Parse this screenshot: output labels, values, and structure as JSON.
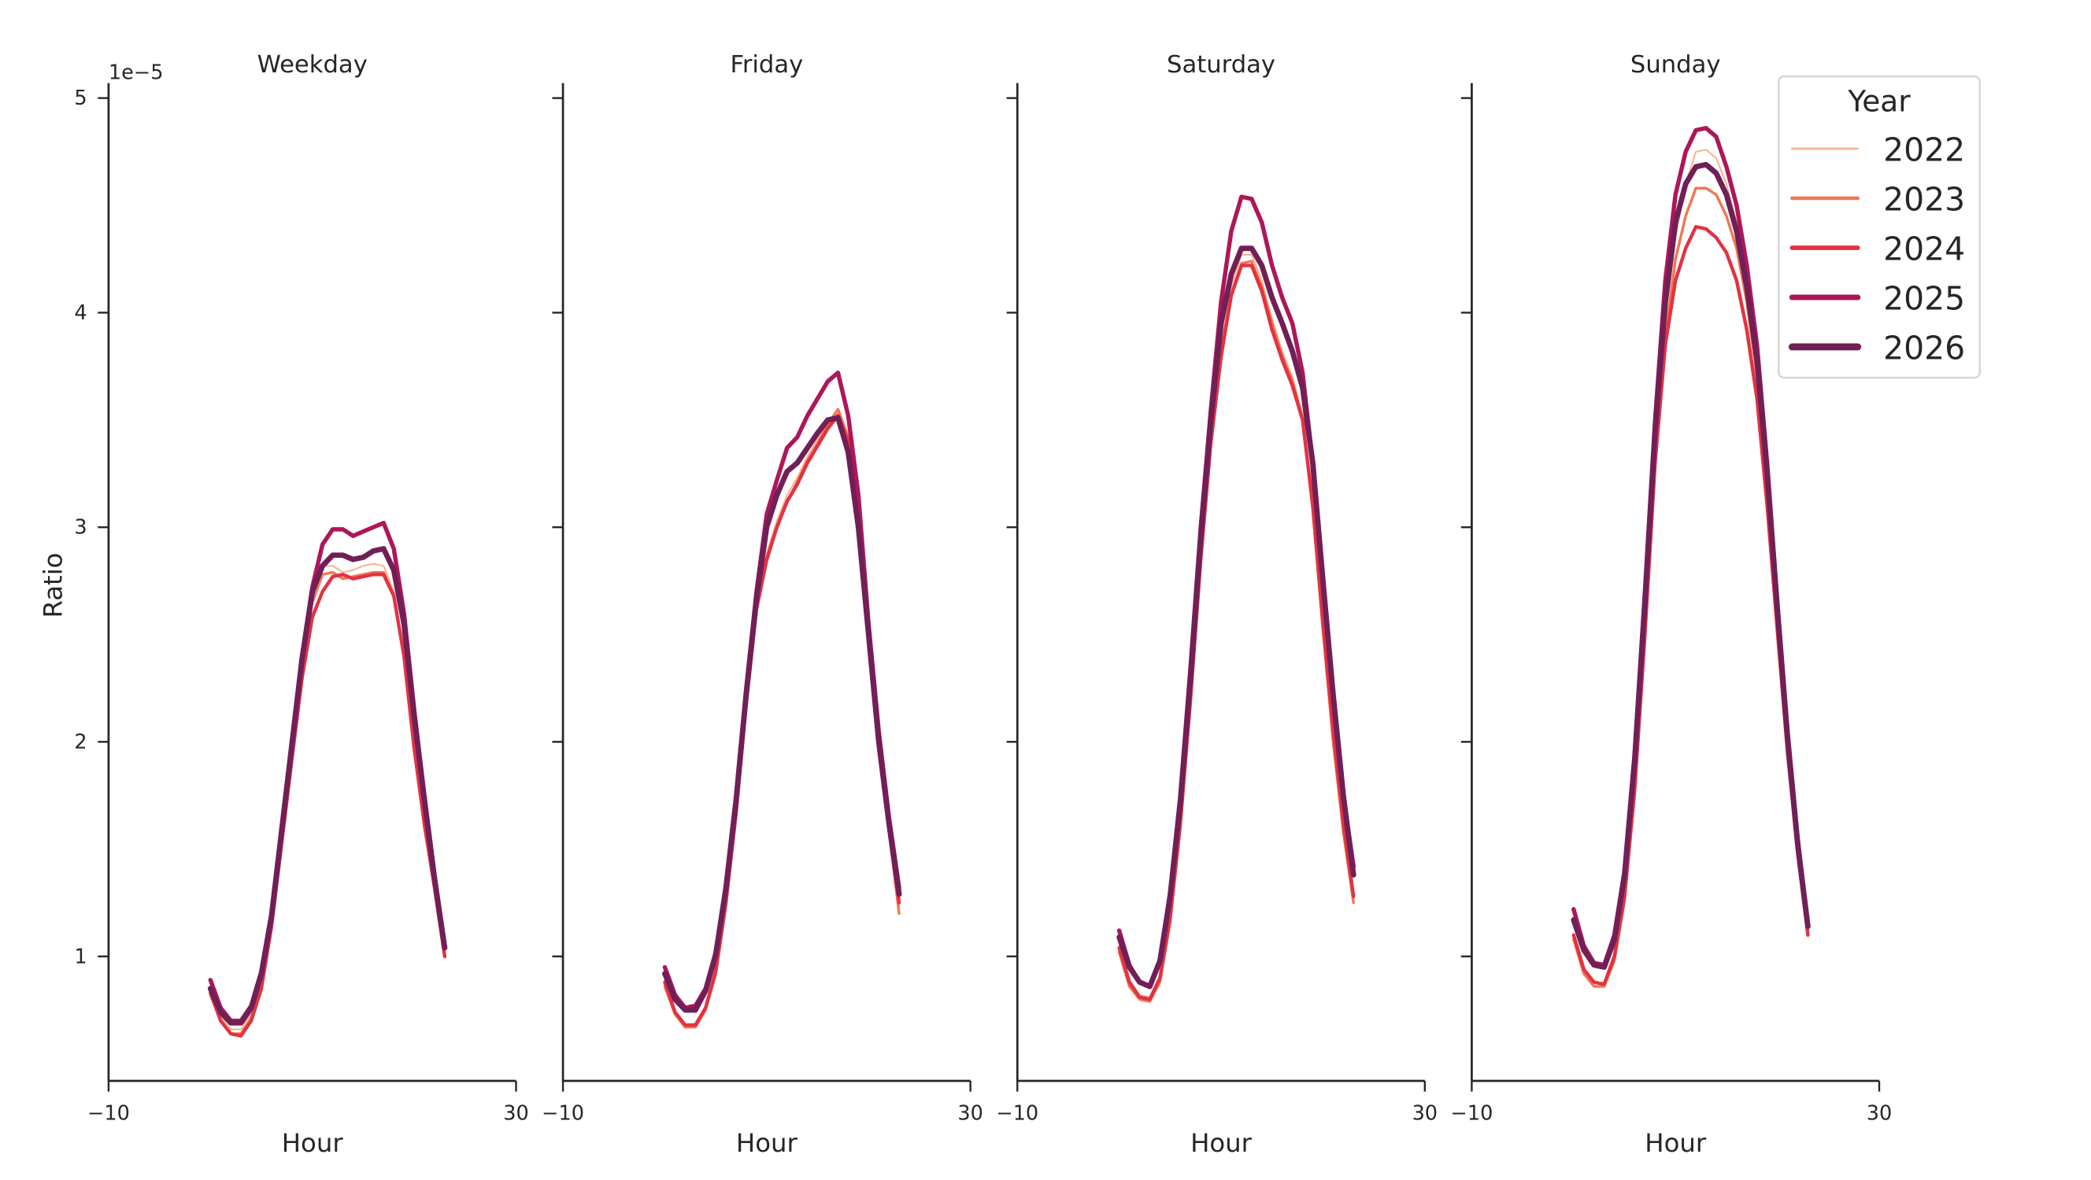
{
  "chart_data": {
    "type": "line",
    "panels": [
      {
        "title": "Weekday",
        "series": [
          {
            "name": "2022",
            "values": [
              0.84,
              0.72,
              0.66,
              0.66,
              0.73,
              0.88,
              1.17,
              1.58,
              1.98,
              2.38,
              2.68,
              2.82,
              2.82,
              2.79,
              2.8,
              2.82,
              2.83,
              2.82,
              2.7,
              2.42,
              1.98,
              1.62,
              1.33,
              1.02
            ]
          },
          {
            "name": "2023",
            "values": [
              0.82,
              0.7,
              0.64,
              0.64,
              0.71,
              0.86,
              1.15,
              1.55,
              1.95,
              2.35,
              2.65,
              2.78,
              2.79,
              2.76,
              2.77,
              2.78,
              2.79,
              2.79,
              2.68,
              2.4,
              1.96,
              1.6,
              1.32,
              1.01
            ]
          },
          {
            "name": "2024",
            "values": [
              0.83,
              0.7,
              0.64,
              0.63,
              0.7,
              0.85,
              1.14,
              1.53,
              1.92,
              2.3,
              2.58,
              2.7,
              2.77,
              2.78,
              2.76,
              2.77,
              2.78,
              2.78,
              2.68,
              2.4,
              1.97,
              1.62,
              1.32,
              1.0
            ]
          },
          {
            "name": "2025",
            "values": [
              0.89,
              0.76,
              0.7,
              0.7,
              0.77,
              0.93,
              1.2,
              1.6,
              2.0,
              2.4,
              2.72,
              2.92,
              2.99,
              2.99,
              2.96,
              2.98,
              3.0,
              3.02,
              2.9,
              2.6,
              2.15,
              1.75,
              1.38,
              1.05
            ]
          },
          {
            "name": "2026",
            "values": [
              0.85,
              0.74,
              0.69,
              0.69,
              0.76,
              0.92,
              1.19,
              1.59,
              1.99,
              2.39,
              2.7,
              2.82,
              2.87,
              2.87,
              2.85,
              2.86,
              2.89,
              2.9,
              2.8,
              2.55,
              2.12,
              1.73,
              1.36,
              1.04
            ]
          }
        ]
      },
      {
        "title": "Friday",
        "series": [
          {
            "name": "2022",
            "values": [
              0.87,
              0.74,
              0.68,
              0.68,
              0.76,
              0.93,
              1.25,
              1.68,
              2.19,
              2.63,
              2.88,
              3.03,
              3.15,
              3.23,
              3.33,
              3.41,
              3.48,
              3.53,
              3.4,
              3.04,
              2.5,
              2.02,
              1.6,
              1.24
            ]
          },
          {
            "name": "2023",
            "values": [
              0.86,
              0.73,
              0.67,
              0.67,
              0.75,
              0.92,
              1.24,
              1.66,
              2.17,
              2.61,
              2.84,
              3.0,
              3.12,
              3.21,
              3.31,
              3.39,
              3.48,
              3.55,
              3.42,
              3.05,
              2.48,
              2.0,
              1.58,
              1.2
            ]
          },
          {
            "name": "2024",
            "values": [
              0.88,
              0.74,
              0.68,
              0.68,
              0.76,
              0.93,
              1.25,
              1.67,
              2.18,
              2.62,
              2.85,
              3.0,
              3.12,
              3.2,
              3.3,
              3.38,
              3.46,
              3.52,
              3.4,
              3.05,
              2.5,
              2.02,
              1.6,
              1.25
            ]
          },
          {
            "name": "2025",
            "values": [
              0.95,
              0.82,
              0.76,
              0.77,
              0.85,
              1.02,
              1.33,
              1.75,
              2.25,
              2.7,
              3.06,
              3.22,
              3.37,
              3.42,
              3.52,
              3.6,
              3.68,
              3.72,
              3.52,
              3.15,
              2.55,
              2.05,
              1.65,
              1.32
            ]
          },
          {
            "name": "2026",
            "values": [
              0.92,
              0.8,
              0.75,
              0.75,
              0.84,
              1.01,
              1.32,
              1.73,
              2.23,
              2.67,
              3.0,
              3.15,
              3.26,
              3.3,
              3.37,
              3.44,
              3.5,
              3.51,
              3.35,
              3.0,
              2.5,
              2.0,
              1.62,
              1.29
            ]
          }
        ]
      },
      {
        "title": "Saturday",
        "series": [
          {
            "name": "2022",
            "values": [
              1.05,
              0.89,
              0.82,
              0.81,
              0.91,
              1.19,
              1.64,
              2.23,
              2.88,
              3.44,
              3.85,
              4.12,
              4.27,
              4.27,
              4.15,
              3.97,
              3.82,
              3.7,
              3.53,
              3.14,
              2.58,
              2.06,
              1.62,
              1.3
            ]
          },
          {
            "name": "2023",
            "values": [
              1.02,
              0.86,
              0.8,
              0.79,
              0.88,
              1.16,
              1.6,
              2.18,
              2.83,
              3.38,
              3.78,
              4.08,
              4.23,
              4.24,
              4.12,
              3.95,
              3.8,
              3.68,
              3.5,
              3.08,
              2.52,
              2.0,
              1.58,
              1.25
            ]
          },
          {
            "name": "2024",
            "values": [
              1.04,
              0.88,
              0.81,
              0.8,
              0.9,
              1.18,
              1.62,
              2.2,
              2.85,
              3.4,
              3.8,
              4.08,
              4.22,
              4.22,
              4.1,
              3.92,
              3.78,
              3.66,
              3.5,
              3.1,
              2.55,
              2.05,
              1.62,
              1.28
            ]
          },
          {
            "name": "2025",
            "values": [
              1.12,
              0.96,
              0.88,
              0.86,
              0.98,
              1.3,
              1.75,
              2.35,
              3.0,
              3.55,
              4.05,
              4.38,
              4.54,
              4.53,
              4.42,
              4.22,
              4.07,
              3.95,
              3.72,
              3.3,
              2.75,
              2.2,
              1.75,
              1.42
            ]
          },
          {
            "name": "2026",
            "values": [
              1.09,
              0.95,
              0.88,
              0.86,
              0.98,
              1.28,
              1.72,
              2.3,
              2.95,
              3.5,
              3.95,
              4.18,
              4.3,
              4.3,
              4.22,
              4.07,
              3.95,
              3.82,
              3.65,
              3.3,
              2.75,
              2.22,
              1.75,
              1.38
            ]
          }
        ]
      },
      {
        "title": "Sunday",
        "series": [
          {
            "name": "2022",
            "values": [
              1.1,
              0.94,
              0.88,
              0.87,
              1.0,
              1.29,
              1.8,
              2.52,
              3.33,
              3.95,
              4.35,
              4.6,
              4.75,
              4.76,
              4.72,
              4.6,
              4.42,
              4.15,
              3.8,
              3.25,
              2.62,
              2.02,
              1.52,
              1.13
            ]
          },
          {
            "name": "2023",
            "values": [
              1.08,
              0.92,
              0.86,
              0.86,
              0.98,
              1.26,
              1.76,
              2.48,
              3.28,
              3.88,
              4.25,
              4.45,
              4.58,
              4.58,
              4.55,
              4.45,
              4.3,
              4.05,
              3.7,
              3.18,
              2.58,
              1.98,
              1.5,
              1.12
            ]
          },
          {
            "name": "2024",
            "values": [
              1.1,
              0.94,
              0.88,
              0.87,
              1.0,
              1.28,
              1.78,
              2.5,
              3.3,
              3.85,
              4.15,
              4.3,
              4.4,
              4.39,
              4.35,
              4.28,
              4.15,
              3.92,
              3.6,
              3.1,
              2.52,
              1.95,
              1.48,
              1.1
            ]
          },
          {
            "name": "2025",
            "values": [
              1.22,
              1.05,
              0.97,
              0.96,
              1.1,
              1.4,
              1.95,
              2.7,
              3.5,
              4.15,
              4.55,
              4.75,
              4.85,
              4.86,
              4.82,
              4.68,
              4.5,
              4.22,
              3.85,
              3.3,
              2.65,
              2.05,
              1.55,
              1.15
            ]
          },
          {
            "name": "2026",
            "values": [
              1.17,
              1.03,
              0.96,
              0.95,
              1.08,
              1.38,
              1.92,
              2.65,
              3.45,
              4.05,
              4.42,
              4.6,
              4.68,
              4.69,
              4.65,
              4.55,
              4.38,
              4.12,
              3.78,
              3.25,
              2.62,
              2.02,
              1.52,
              1.14
            ]
          }
        ]
      }
    ],
    "x": [
      0,
      1,
      2,
      3,
      4,
      5,
      6,
      7,
      8,
      9,
      10,
      11,
      12,
      13,
      14,
      15,
      16,
      17,
      18,
      19,
      20,
      21,
      22,
      23
    ],
    "xlabel": "Hour",
    "ylabel": "Ratio",
    "y_offset_label": "1e−5",
    "xlim": [
      -10,
      30
    ],
    "ylim": [
      0.42,
      5.07
    ],
    "xticks": [
      "−10",
      "30"
    ],
    "yticks": [
      "1",
      "2",
      "3",
      "4",
      "5"
    ],
    "grid": false,
    "legend": {
      "title": "Year",
      "placement": "top-right",
      "entries": [
        "2022",
        "2023",
        "2024",
        "2025",
        "2026"
      ]
    },
    "colors": {
      "2022": "#f6b48f",
      "2023": "#f37651",
      "2024": "#e13342",
      "2025": "#ad1759",
      "2026": "#701f57"
    }
  }
}
